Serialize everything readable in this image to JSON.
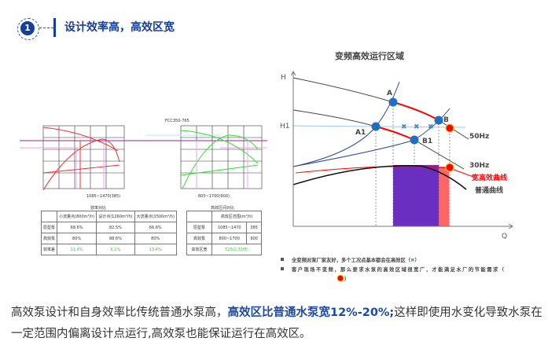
{
  "header": {
    "number": "1",
    "title": "设计效率高，高效区宽"
  },
  "left_figure": {
    "table1": {
      "title": "效率对比",
      "columns": [
        "",
        "小流量点(800m³/h)",
        "设计点(1260m³/h)",
        "大流量点(1500m³/h)"
      ],
      "rows": [
        [
          "原型泵",
          "68.6%",
          "82.5%",
          "66.6%"
        ],
        [
          "高效泵",
          "80%",
          "88.6%",
          "80%"
        ],
        [
          "效率差",
          "11.4%",
          "6.1%",
          "13.4%"
        ]
      ]
    },
    "table2": {
      "title": "高效区间对比",
      "columns": [
        "",
        "高效区范围(m³/h)"
      ],
      "rows": [
        [
          "原型泵",
          "1085~1470",
          "385"
        ],
        [
          "高效泵",
          "800~1700",
          "900"
        ],
        [
          "高效区宽",
          "515(2.33倍)"
        ]
      ]
    },
    "chart2_title": "FCC350-765",
    "x_ticks": [
      "150",
      "450",
      "750",
      "1050",
      "1350",
      "1650",
      "1950"
    ],
    "range1": "1085~1470(385)",
    "range2": "800~1700(900)"
  },
  "right_chart": {
    "title": "变频高效运行区域",
    "y_axis": "H",
    "x_axis": "Q",
    "h1_label": "H1",
    "points": {
      "A": "A",
      "B": "B",
      "A1": "A1",
      "B1": "B1"
    },
    "curve_labels": {
      "hz50": "50Hz",
      "hz30": "30Hz",
      "wide": "宽高效曲线",
      "normal": "普通曲线"
    },
    "colors": {
      "wide": "#ff0000",
      "normal": "#222222",
      "purple": "#6a2fc0",
      "red_band": "#ff6666",
      "points": "#1f6fc4"
    },
    "notes": [
      "全变频对泵厂家友好，多个工况点基本都会在高效区（",
      "）",
      "客户现场不变频，那么要求水泵的高效区域很宽广，才能满足水厂的节能需求（",
      "）"
    ]
  },
  "body": {
    "text1": "高效泵设计和自身效率比传统普通水泵高，",
    "highlight": "高效区比普通水泵宽12%-20%;",
    "text2": "这样即使用水变化导致水泵在一定范围内偏离设计点运行,高效泵也能保证运行在高效区。"
  }
}
